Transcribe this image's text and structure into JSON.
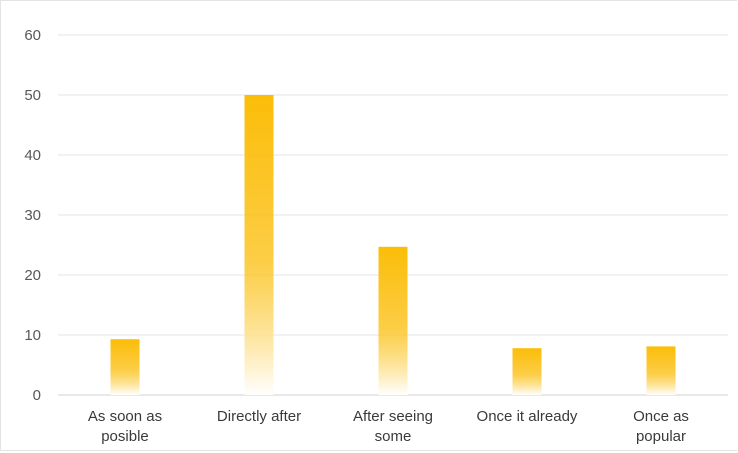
{
  "chart_data": {
    "type": "bar",
    "title": "",
    "xlabel": "",
    "ylabel": "",
    "categories": [
      [
        "As soon as",
        "posible"
      ],
      [
        "Directly after"
      ],
      [
        "After seeing",
        "some"
      ],
      [
        "Once it already"
      ],
      [
        "Once as",
        "popular"
      ]
    ],
    "values": [
      9.3,
      50,
      24.7,
      7.8,
      8.1
    ],
    "ylim": [
      0,
      60
    ],
    "yticks": [
      "0",
      "10",
      "20",
      "30",
      "40",
      "50",
      "60"
    ],
    "grid": true,
    "legend": "none",
    "bar_color": "#fbbd08",
    "bar_color_fade": "#ffffff"
  }
}
